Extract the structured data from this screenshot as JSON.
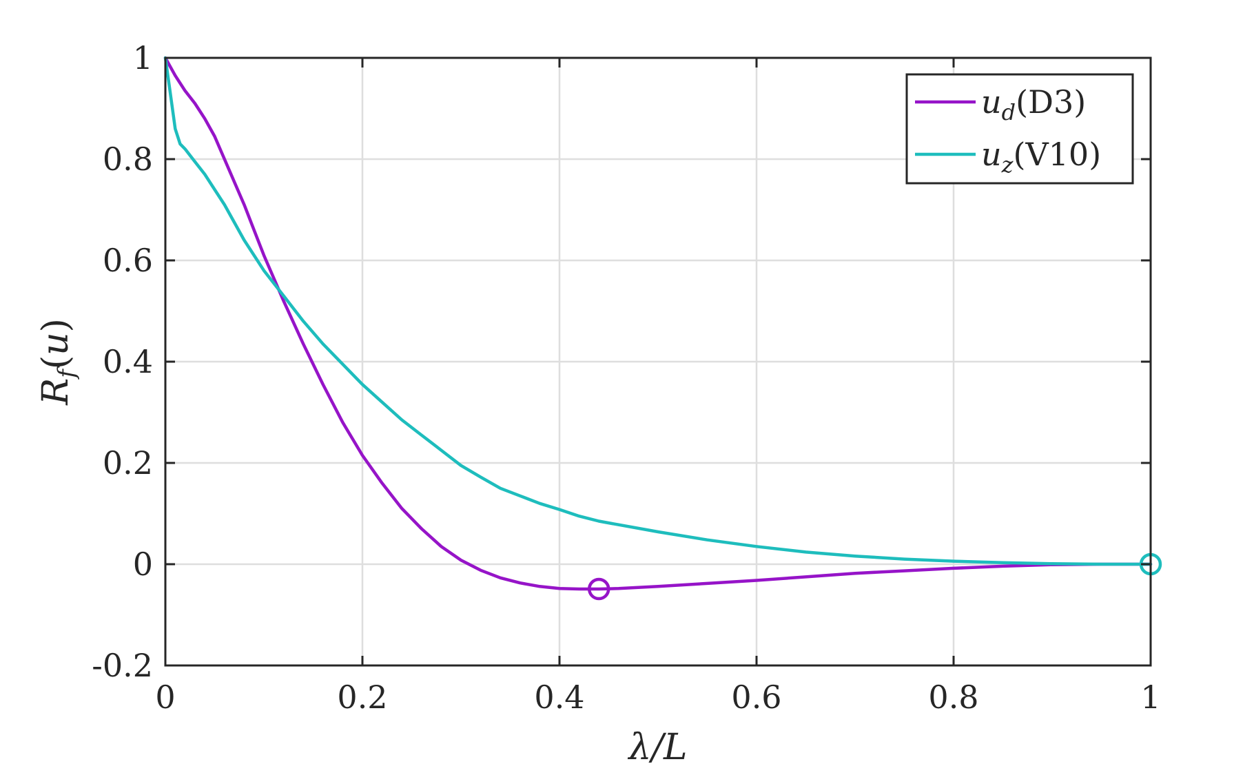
{
  "chart_data": {
    "type": "line",
    "title": "",
    "xlabel": "λ/L",
    "ylabel": "R_f(u)",
    "xlim": [
      0,
      1
    ],
    "ylim": [
      -0.2,
      1
    ],
    "xticks": [
      0,
      0.2,
      0.4,
      0.6,
      0.8,
      1
    ],
    "xtick_labels": [
      "0",
      "0.2",
      "0.4",
      "0.6",
      "0.8",
      "1"
    ],
    "yticks": [
      -0.2,
      0,
      0.2,
      0.4,
      0.6,
      0.8,
      1
    ],
    "ytick_labels": [
      "-0.2",
      "0",
      "0.2",
      "0.4",
      "0.6",
      "0.8",
      "1"
    ],
    "grid": true,
    "legend_position": "top-right",
    "series": [
      {
        "name": "u_d(D3)",
        "legend_main": "u",
        "legend_sub": "d",
        "legend_tail": "(D3)",
        "color": "#9614c8",
        "x": [
          0,
          0.01,
          0.02,
          0.03,
          0.04,
          0.05,
          0.06,
          0.07,
          0.08,
          0.09,
          0.1,
          0.12,
          0.14,
          0.16,
          0.18,
          0.2,
          0.22,
          0.24,
          0.26,
          0.28,
          0.3,
          0.32,
          0.34,
          0.36,
          0.38,
          0.4,
          0.42,
          0.44,
          0.46,
          0.5,
          0.55,
          0.6,
          0.65,
          0.7,
          0.75,
          0.8,
          0.85,
          0.9,
          0.95,
          1.0
        ],
        "y": [
          1.0,
          0.965,
          0.935,
          0.91,
          0.88,
          0.845,
          0.8,
          0.755,
          0.71,
          0.66,
          0.61,
          0.52,
          0.435,
          0.355,
          0.28,
          0.215,
          0.16,
          0.11,
          0.07,
          0.035,
          0.008,
          -0.012,
          -0.027,
          -0.037,
          -0.044,
          -0.048,
          -0.049,
          -0.049,
          -0.048,
          -0.044,
          -0.038,
          -0.032,
          -0.025,
          -0.018,
          -0.013,
          -0.008,
          -0.004,
          -0.001,
          0.0,
          0.0
        ],
        "marker": {
          "x": 0.44,
          "y": -0.049
        }
      },
      {
        "name": "u_z(V10)",
        "legend_main": "u",
        "legend_sub": "z",
        "legend_tail": "(V10)",
        "color": "#1ebdbd",
        "x": [
          0,
          0.005,
          0.01,
          0.015,
          0.02,
          0.03,
          0.04,
          0.05,
          0.06,
          0.07,
          0.08,
          0.09,
          0.1,
          0.12,
          0.14,
          0.16,
          0.18,
          0.2,
          0.22,
          0.24,
          0.26,
          0.28,
          0.3,
          0.32,
          0.34,
          0.36,
          0.38,
          0.4,
          0.42,
          0.44,
          0.46,
          0.5,
          0.55,
          0.6,
          0.65,
          0.7,
          0.75,
          0.8,
          0.85,
          0.9,
          0.95,
          1.0
        ],
        "y": [
          1.0,
          0.93,
          0.86,
          0.83,
          0.82,
          0.795,
          0.77,
          0.74,
          0.71,
          0.675,
          0.64,
          0.61,
          0.58,
          0.53,
          0.48,
          0.435,
          0.395,
          0.355,
          0.32,
          0.285,
          0.255,
          0.225,
          0.195,
          0.172,
          0.15,
          0.135,
          0.12,
          0.108,
          0.095,
          0.085,
          0.078,
          0.064,
          0.048,
          0.035,
          0.024,
          0.016,
          0.01,
          0.006,
          0.003,
          0.001,
          0.0,
          0.0
        ],
        "marker": {
          "x": 1.0,
          "y": 0.0
        }
      }
    ]
  }
}
